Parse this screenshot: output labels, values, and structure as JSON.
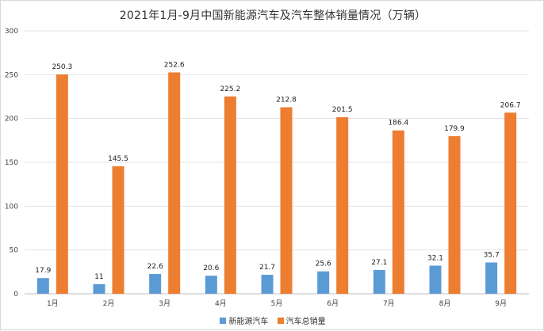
{
  "chart_data": {
    "type": "bar",
    "title": "2021年1月-9月中国新能源汽车及汽车整体销量情况（万辆）",
    "categories": [
      "1月",
      "2月",
      "3月",
      "4月",
      "5月",
      "6月",
      "7月",
      "8月",
      "9月"
    ],
    "series": [
      {
        "name": "新能源汽车",
        "color": "#5b9bd5",
        "values": [
          17.9,
          11,
          22.6,
          20.6,
          21.7,
          25.6,
          27.1,
          32.1,
          35.7
        ]
      },
      {
        "name": "汽车总销量",
        "color": "#ed7d31",
        "values": [
          250.3,
          145.5,
          252.6,
          225.2,
          212.8,
          201.5,
          186.4,
          179.9,
          206.7
        ]
      }
    ],
    "ylim": [
      0,
      300
    ],
    "yticks": [
      0,
      50,
      100,
      150,
      200,
      250,
      300
    ],
    "grid": true,
    "legend_position": "bottom"
  }
}
